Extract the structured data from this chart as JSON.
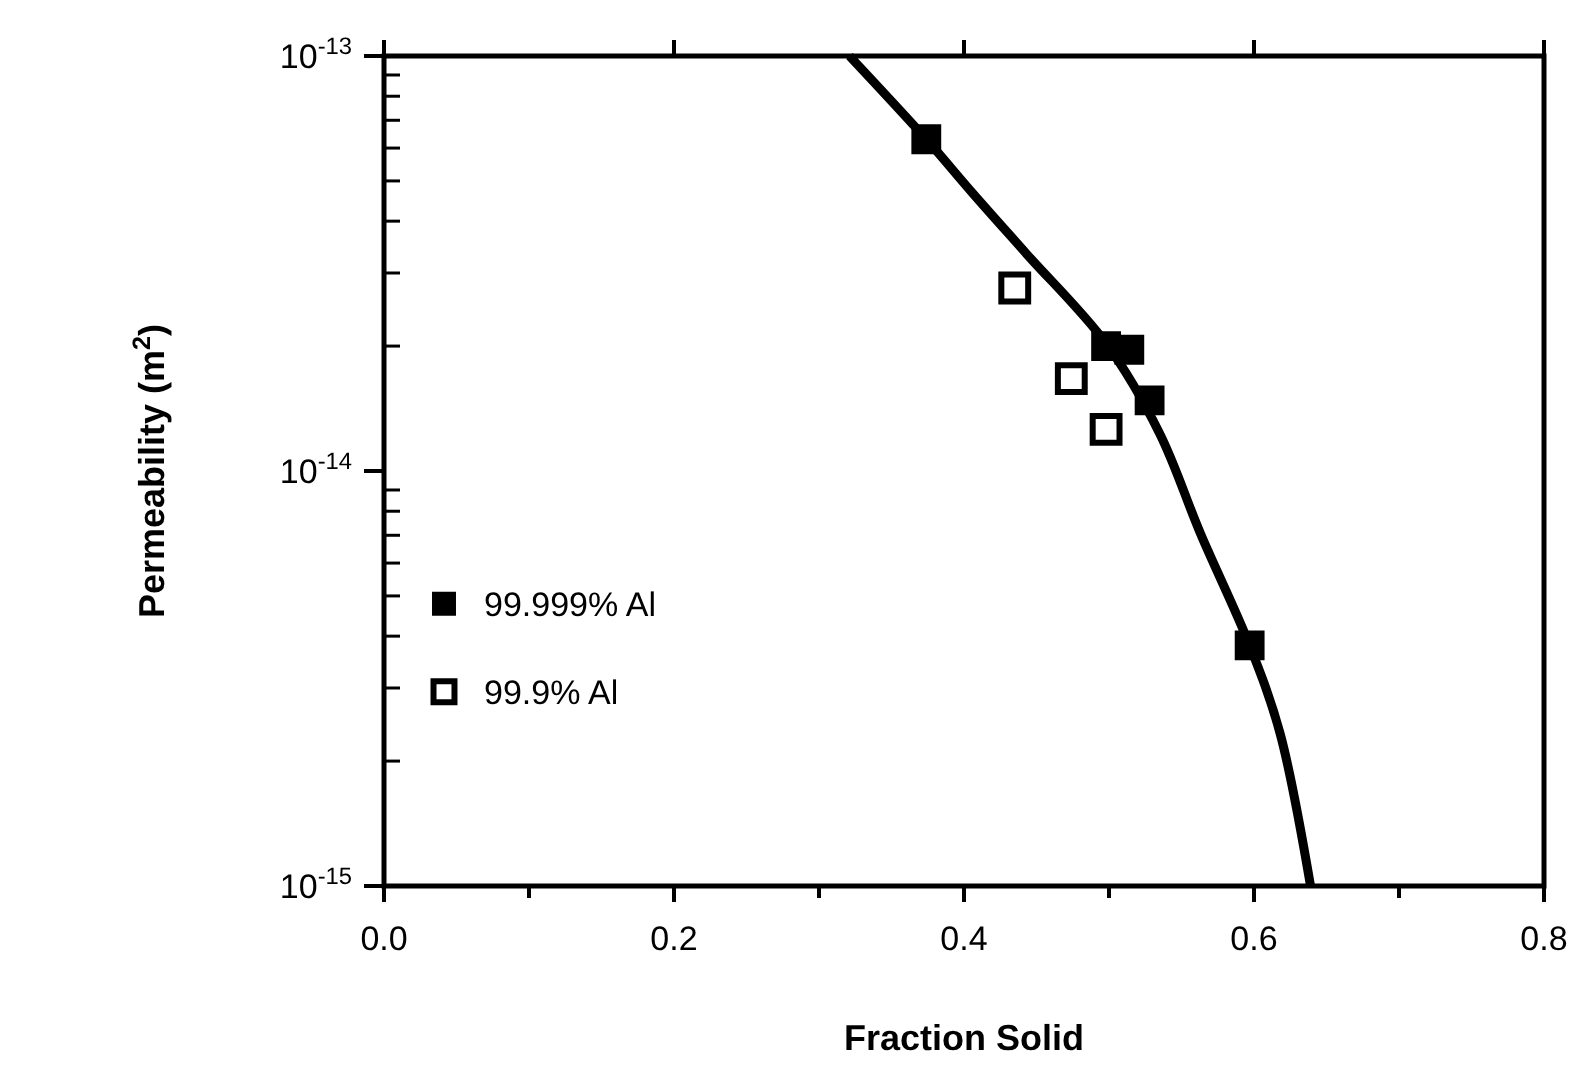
{
  "chart_data": {
    "type": "scatter",
    "xlabel": "Fraction  Solid",
    "ylabel": "Permeability  (m$^{2}$)",
    "log": "y",
    "xlim": [
      0,
      0.8
    ],
    "ylim": [
      1e-15,
      1e-13
    ],
    "xticks": [
      {
        "value": 0,
        "label": "0.0"
      },
      {
        "value": 0.2,
        "label": "0.2"
      },
      {
        "value": 0.4,
        "label": "0.4"
      },
      {
        "value": 0.6,
        "label": "0.6"
      },
      {
        "value": 0.8,
        "label": "0.8"
      }
    ],
    "yticks": [
      {
        "value": 1e-15,
        "label": "10$^{-15}$"
      },
      {
        "value": 1e-14,
        "label": "10$^{-14}$"
      },
      {
        "value": 1e-13,
        "label": "10$^{-13}$"
      }
    ],
    "legend": "left",
    "grid": false,
    "series": [
      {
        "name": "99.999% Al",
        "color": "#000000",
        "marker": "square",
        "x": [
          0.374,
          0.498,
          0.514,
          0.528,
          0.597
        ],
        "values": [
          6.3e-14,
          2e-14,
          1.96e-14,
          1.48e-14,
          3.8e-15
        ]
      },
      {
        "name": "99.9% Al",
        "color": "#ffffff",
        "marker": "square",
        "x": [
          0.435,
          0.474,
          0.498
        ],
        "values": [
          2.76e-14,
          1.67e-14,
          1.26e-14
        ]
      },
      {
        "type": "line",
        "color": "#000000",
        "marker": "none",
        "x": [
          0.321,
          0.374,
          0.406,
          0.443,
          0.498,
          0.535,
          0.563,
          0.597,
          0.618,
          0.639
        ],
        "values": [
          1e-13,
          6.3e-14,
          4.67e-14,
          3.34e-14,
          2.03e-14,
          1.23e-14,
          7.08e-15,
          3.8e-15,
          2.33e-15,
          1e-15
        ]
      }
    ]
  }
}
